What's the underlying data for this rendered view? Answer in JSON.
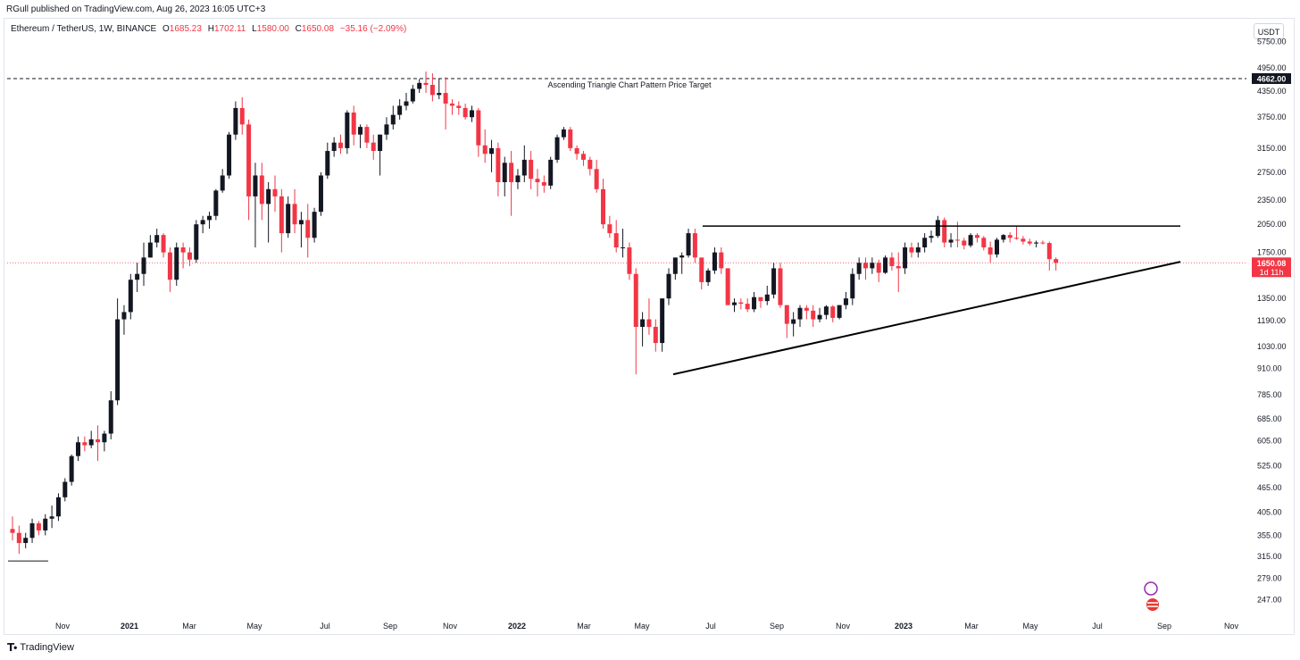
{
  "header": {
    "caption": "RGull published on TradingView.com, Aug 26, 2023 16:05 UTC+3",
    "symbol": "Ethereum / TetherUS, 1W, BINANCE",
    "ohlc": [
      {
        "label": "O",
        "value": "1685.23"
      },
      {
        "label": "H",
        "value": "1702.11"
      },
      {
        "label": "L",
        "value": "1580.00"
      },
      {
        "label": "C",
        "value": "1650.08"
      }
    ],
    "change": "−35.16 (−2.09%)",
    "currency_button": "USDT"
  },
  "footer": {
    "brand": "TradingView",
    "logo_icon": "tradingview-logo-icon"
  },
  "colors": {
    "up": "#131722",
    "down": "#f23645",
    "grid": "#ffffff",
    "axis_text": "#131722",
    "price_line": "#f23645"
  },
  "chart_data": {
    "type": "candlestick",
    "title": "",
    "timeframe": "1W",
    "y_scale": "log",
    "ylim": [
      225,
      6500
    ],
    "y_ticks": [
      5750,
      4950,
      4350,
      3750,
      3150,
      2750,
      2350,
      2050,
      1750,
      1350,
      1190,
      1030,
      910,
      785,
      685,
      605,
      525,
      465,
      405,
      355,
      315,
      279,
      247
    ],
    "x_ticks": [
      "Nov",
      "2021",
      "Mar",
      "May",
      "Jul",
      "Sep",
      "Nov",
      "2022",
      "Mar",
      "May",
      "Jul",
      "Sep",
      "Nov",
      "2023",
      "Mar",
      "May",
      "Jul",
      "Sep",
      "Nov"
    ],
    "bold_x_ticks": [
      "2021",
      "2022",
      "2023"
    ],
    "current_price": {
      "value": "1650.08",
      "countdown": "1d 11h"
    },
    "target_price": {
      "value": "4662.00",
      "label": "Ascending Triangle Chart Pattern Price Target"
    },
    "series": [
      {
        "name": "ETHUSDT",
        "candles": [
          [
            368,
            395,
            345,
            360
          ],
          [
            360,
            375,
            320,
            340
          ],
          [
            340,
            360,
            330,
            350
          ],
          [
            350,
            390,
            340,
            380
          ],
          [
            380,
            385,
            355,
            365
          ],
          [
            365,
            400,
            355,
            390
          ],
          [
            390,
            420,
            370,
            395
          ],
          [
            395,
            450,
            385,
            440
          ],
          [
            440,
            490,
            430,
            480
          ],
          [
            480,
            560,
            470,
            555
          ],
          [
            555,
            620,
            540,
            600
          ],
          [
            600,
            620,
            570,
            590
          ],
          [
            590,
            640,
            580,
            610
          ],
          [
            610,
            660,
            540,
            600
          ],
          [
            600,
            640,
            570,
            630
          ],
          [
            630,
            800,
            610,
            760
          ],
          [
            760,
            1350,
            740,
            1200
          ],
          [
            1200,
            1300,
            1100,
            1250
          ],
          [
            1250,
            1550,
            1200,
            1500
          ],
          [
            1500,
            1650,
            1400,
            1550
          ],
          [
            1550,
            1850,
            1450,
            1700
          ],
          [
            1700,
            1930,
            1700,
            1850
          ],
          [
            1850,
            2000,
            1800,
            1930
          ],
          [
            1930,
            1950,
            1700,
            1750
          ],
          [
            1750,
            1800,
            1400,
            1500
          ],
          [
            1500,
            1850,
            1450,
            1800
          ],
          [
            1800,
            1850,
            1600,
            1750
          ],
          [
            1750,
            1800,
            1620,
            1680
          ],
          [
            1680,
            2100,
            1650,
            2050
          ],
          [
            2050,
            2150,
            1950,
            2100
          ],
          [
            2100,
            2200,
            2000,
            2150
          ],
          [
            2150,
            2500,
            2100,
            2480
          ],
          [
            2480,
            2800,
            2450,
            2700
          ],
          [
            2700,
            3450,
            2650,
            3400
          ],
          [
            3400,
            4100,
            3300,
            3950
          ],
          [
            3950,
            4200,
            3400,
            3600
          ],
          [
            3600,
            3700,
            2100,
            2400
          ],
          [
            2400,
            2900,
            1800,
            2700
          ],
          [
            2700,
            2900,
            2100,
            2300
          ],
          [
            2300,
            2600,
            1850,
            2500
          ],
          [
            2500,
            2700,
            2200,
            2400
          ],
          [
            2400,
            2500,
            1750,
            1950
          ],
          [
            1950,
            2400,
            1900,
            2300
          ],
          [
            2300,
            2500,
            1950,
            2050
          ],
          [
            2050,
            2200,
            1800,
            2100
          ],
          [
            2100,
            2300,
            1700,
            1900
          ],
          [
            1900,
            2250,
            1850,
            2200
          ],
          [
            2200,
            2750,
            2150,
            2700
          ],
          [
            2700,
            3250,
            2650,
            3100
          ],
          [
            3100,
            3350,
            3000,
            3250
          ],
          [
            3250,
            3400,
            3050,
            3150
          ],
          [
            3150,
            3900,
            3050,
            3850
          ],
          [
            3850,
            4000,
            3200,
            3400
          ],
          [
            3400,
            3600,
            3150,
            3550
          ],
          [
            3550,
            3600,
            3150,
            3250
          ],
          [
            3250,
            3400,
            2950,
            3100
          ],
          [
            3100,
            3400,
            2700,
            3400
          ],
          [
            3400,
            3750,
            3300,
            3600
          ],
          [
            3600,
            4000,
            3500,
            3800
          ],
          [
            3800,
            4150,
            3700,
            4000
          ],
          [
            4000,
            4300,
            3900,
            4100
          ],
          [
            4100,
            4500,
            4050,
            4400
          ],
          [
            4400,
            4650,
            4300,
            4550
          ],
          [
            4550,
            4850,
            4300,
            4500
          ],
          [
            4500,
            4800,
            4100,
            4250
          ],
          [
            4250,
            4650,
            4150,
            4300
          ],
          [
            4300,
            4700,
            3500,
            4050
          ],
          [
            4050,
            4150,
            3800,
            4000
          ],
          [
            4000,
            4100,
            3800,
            3950
          ],
          [
            3950,
            4050,
            3700,
            3750
          ],
          [
            3750,
            4000,
            3650,
            3900
          ],
          [
            3900,
            3950,
            3000,
            3200
          ],
          [
            3200,
            3500,
            2900,
            3050
          ],
          [
            3050,
            3300,
            2750,
            3150
          ],
          [
            3150,
            3250,
            2400,
            2600
          ],
          [
            2600,
            3000,
            2400,
            2900
          ],
          [
            2900,
            3100,
            2150,
            2600
          ],
          [
            2600,
            2800,
            2500,
            2700
          ],
          [
            2700,
            3200,
            2600,
            2950
          ],
          [
            2950,
            3100,
            2500,
            2650
          ],
          [
            2650,
            2800,
            2400,
            2600
          ],
          [
            2600,
            2700,
            2450,
            2550
          ],
          [
            2550,
            3000,
            2500,
            2950
          ],
          [
            2950,
            3400,
            2900,
            3350
          ],
          [
            3350,
            3550,
            3300,
            3500
          ],
          [
            3500,
            3550,
            3100,
            3150
          ],
          [
            3150,
            3200,
            2950,
            3050
          ],
          [
            3050,
            3100,
            2850,
            2950
          ],
          [
            2950,
            3000,
            2700,
            2800
          ],
          [
            2800,
            2950,
            2450,
            2500
          ],
          [
            2500,
            2650,
            2000,
            2050
          ],
          [
            2050,
            2150,
            1900,
            1950
          ],
          [
            1950,
            2100,
            1750,
            1800
          ],
          [
            1800,
            2000,
            1700,
            1800
          ],
          [
            1800,
            1850,
            1500,
            1550
          ],
          [
            1550,
            1600,
            880,
            1150
          ],
          [
            1150,
            1250,
            1030,
            1200
          ],
          [
            1200,
            1350,
            1100,
            1150
          ],
          [
            1150,
            1200,
            1000,
            1050
          ],
          [
            1050,
            1350,
            1000,
            1350
          ],
          [
            1350,
            1600,
            1300,
            1550
          ],
          [
            1550,
            1700,
            1500,
            1700
          ],
          [
            1700,
            1750,
            1550,
            1720
          ],
          [
            1720,
            2000,
            1700,
            1950
          ],
          [
            1950,
            2000,
            1650,
            1700
          ],
          [
            1700,
            1700,
            1420,
            1480
          ],
          [
            1480,
            1600,
            1450,
            1580
          ],
          [
            1580,
            1800,
            1550,
            1750
          ],
          [
            1750,
            1800,
            1550,
            1600
          ],
          [
            1600,
            1600,
            1300,
            1300
          ],
          [
            1300,
            1350,
            1250,
            1320
          ],
          [
            1320,
            1350,
            1270,
            1310
          ],
          [
            1310,
            1350,
            1250,
            1270
          ],
          [
            1270,
            1400,
            1250,
            1360
          ],
          [
            1360,
            1350,
            1280,
            1330
          ],
          [
            1330,
            1450,
            1300,
            1380
          ],
          [
            1380,
            1650,
            1350,
            1600
          ],
          [
            1600,
            1650,
            1280,
            1300
          ],
          [
            1300,
            1300,
            1080,
            1170
          ],
          [
            1170,
            1250,
            1090,
            1200
          ],
          [
            1200,
            1300,
            1150,
            1280
          ],
          [
            1280,
            1300,
            1200,
            1260
          ],
          [
            1260,
            1300,
            1150,
            1200
          ],
          [
            1200,
            1280,
            1180,
            1230
          ],
          [
            1230,
            1300,
            1200,
            1290
          ],
          [
            1290,
            1300,
            1180,
            1210
          ],
          [
            1210,
            1300,
            1200,
            1300
          ],
          [
            1300,
            1400,
            1270,
            1350
          ],
          [
            1350,
            1600,
            1300,
            1550
          ],
          [
            1550,
            1700,
            1500,
            1650
          ],
          [
            1650,
            1700,
            1500,
            1600
          ],
          [
            1600,
            1700,
            1550,
            1650
          ],
          [
            1650,
            1680,
            1480,
            1560
          ],
          [
            1560,
            1720,
            1550,
            1700
          ],
          [
            1700,
            1750,
            1580,
            1620
          ],
          [
            1620,
            1750,
            1400,
            1600
          ],
          [
            1600,
            1850,
            1550,
            1800
          ],
          [
            1800,
            1850,
            1700,
            1750
          ],
          [
            1750,
            1850,
            1700,
            1800
          ],
          [
            1800,
            1950,
            1750,
            1900
          ],
          [
            1900,
            1980,
            1850,
            1920
          ],
          [
            1920,
            2150,
            1900,
            2100
          ],
          [
            2100,
            2130,
            1800,
            1850
          ],
          [
            1850,
            1950,
            1800,
            1880
          ],
          [
            1880,
            2080,
            1800,
            1870
          ],
          [
            1870,
            1900,
            1780,
            1820
          ],
          [
            1820,
            1950,
            1800,
            1930
          ],
          [
            1930,
            1950,
            1850,
            1900
          ],
          [
            1900,
            1920,
            1770,
            1800
          ],
          [
            1800,
            1860,
            1650,
            1730
          ],
          [
            1730,
            1900,
            1700,
            1880
          ],
          [
            1880,
            1940,
            1850,
            1930
          ],
          [
            1930,
            1960,
            1850,
            1900
          ],
          [
            1900,
            2030,
            1880,
            1890
          ],
          [
            1890,
            1920,
            1830,
            1860
          ],
          [
            1860,
            1890,
            1820,
            1840
          ],
          [
            1840,
            1870,
            1800,
            1850
          ],
          [
            1850,
            1870,
            1830,
            1845
          ],
          [
            1845,
            1860,
            1580,
            1685
          ],
          [
            1685,
            1702,
            1580,
            1650
          ]
        ]
      }
    ],
    "annotations": [
      {
        "type": "trendline",
        "role": "triangle resistance",
        "from": {
          "date": "2022-06-20",
          "price": 2030
        },
        "to": {
          "date": "2023-09-04",
          "price": 2030
        }
      },
      {
        "type": "trendline",
        "role": "triangle support",
        "from": {
          "date": "2022-06-06",
          "price": 880
        },
        "to": {
          "date": "2023-09-04",
          "price": 1660
        }
      },
      {
        "type": "horizontal_line",
        "style": "dashed",
        "price": 4662,
        "label": "Ascending Triangle Chart Pattern Price Target"
      }
    ]
  }
}
